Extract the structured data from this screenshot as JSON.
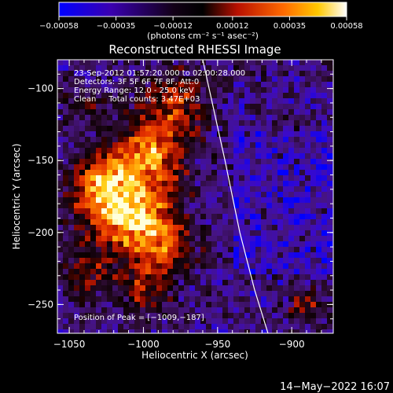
{
  "chart_data": {
    "type": "heatmap",
    "title": "Reconstructed RHESSI Image",
    "xlabel": "Heliocentric X (arcsec)",
    "ylabel": "Heliocentric Y (arcsec)",
    "xlim": [
      -1058,
      -872
    ],
    "ylim": [
      -270,
      -80
    ],
    "x_ticks": [
      -1050,
      -1000,
      -950,
      -900
    ],
    "x_tick_labels": [
      "−1050",
      "−1000",
      "−950",
      "−900"
    ],
    "y_ticks": [
      -100,
      -150,
      -200,
      -250
    ],
    "y_tick_labels": [
      "−100",
      "−150",
      "−200",
      "−250"
    ],
    "colorbar": {
      "min": -0.00058,
      "max": 0.00058,
      "ticks": [
        -0.00058,
        -0.00035,
        -0.00012,
        0.00012,
        0.00035,
        0.00058
      ],
      "tick_labels": [
        "−0.00058",
        "−0.00035",
        "−0.00012",
        "0.00012",
        "0.00035",
        "0.00058"
      ],
      "unit_label": "(photons cm⁻² s⁻¹ asec⁻²)"
    },
    "annotations": [
      "23-Sep-2012 01:57:20.000 to 02:00:28.000",
      "Detectors: 3F 5F 6F 7F 8F, Att:0",
      "Energy Range: 12.0 - 25.0 keV",
      "Clean     Total counts: 3.47E+03"
    ],
    "peak_label": "Position of Peak = [−1009,−187]",
    "peak_position": [
      -1009,
      -187
    ],
    "limb_curve": [
      [
        -960,
        -80
      ],
      [
        -945,
        -150
      ],
      [
        -935,
        -200
      ],
      [
        -925,
        -240
      ],
      [
        -916,
        -270
      ]
    ],
    "grid": false
  },
  "footer_timestamp": "14−May−2022 16:07"
}
